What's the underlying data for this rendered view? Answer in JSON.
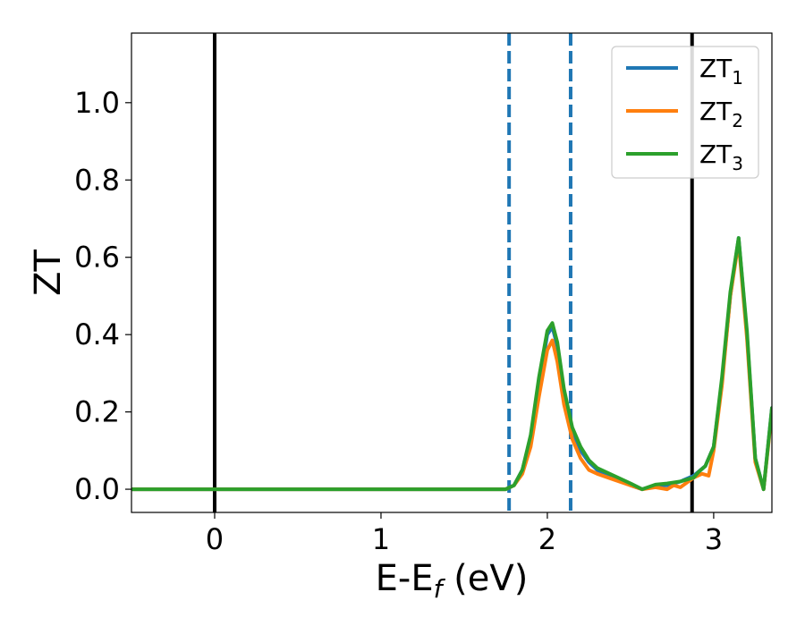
{
  "chart_data": {
    "type": "line",
    "xlabel_main": "E-E",
    "xlabel_sub": "f",
    "xlabel_unit": " (eV)",
    "ylabel": "ZT",
    "xlim": [
      -0.5,
      3.35
    ],
    "ylim": [
      -0.06,
      1.18
    ],
    "xticks": [
      0,
      1,
      2,
      3
    ],
    "xtick_labels": [
      "0",
      "1",
      "2",
      "3"
    ],
    "yticks": [
      0.0,
      0.2,
      0.4,
      0.6,
      0.8,
      1.0
    ],
    "ytick_labels": [
      "0.0",
      "0.2",
      "0.4",
      "0.6",
      "0.8",
      "1.0"
    ],
    "grid": false,
    "legend_position": "top-right",
    "vlines_solid": [
      0.0,
      2.87
    ],
    "vlines_dashed": [
      1.77,
      2.14
    ],
    "series": [
      {
        "name_main": "ZT",
        "name_sub": "1",
        "color": "#1f77b4",
        "x": [
          -0.5,
          1.75,
          1.8,
          1.85,
          1.9,
          1.95,
          2.0,
          2.03,
          2.06,
          2.1,
          2.15,
          2.2,
          2.25,
          2.3,
          2.4,
          2.5,
          2.57,
          2.65,
          2.72,
          2.8,
          2.88,
          2.95,
          3.0,
          3.05,
          3.1,
          3.15,
          3.2,
          3.25,
          3.3,
          3.35
        ],
        "y": [
          0.0,
          0.0,
          0.01,
          0.05,
          0.13,
          0.27,
          0.4,
          0.42,
          0.37,
          0.25,
          0.15,
          0.1,
          0.07,
          0.05,
          0.03,
          0.01,
          0.0,
          0.01,
          0.01,
          0.02,
          0.035,
          0.06,
          0.11,
          0.28,
          0.5,
          0.65,
          0.4,
          0.08,
          0.0,
          0.21
        ]
      },
      {
        "name_main": "ZT",
        "name_sub": "2",
        "color": "#ff7f0e",
        "x": [
          -0.5,
          1.75,
          1.8,
          1.85,
          1.9,
          1.95,
          2.0,
          2.03,
          2.06,
          2.1,
          2.15,
          2.2,
          2.25,
          2.3,
          2.4,
          2.5,
          2.57,
          2.65,
          2.72,
          2.76,
          2.8,
          2.88,
          2.93,
          2.97,
          3.0,
          3.05,
          3.1,
          3.15,
          3.2,
          3.25,
          3.3,
          3.35
        ],
        "y": [
          0.0,
          0.0,
          0.01,
          0.04,
          0.11,
          0.24,
          0.36,
          0.385,
          0.33,
          0.22,
          0.13,
          0.08,
          0.05,
          0.04,
          0.025,
          0.01,
          0.0,
          0.005,
          0.0,
          0.01,
          0.005,
          0.03,
          0.04,
          0.035,
          0.1,
          0.27,
          0.5,
          0.64,
          0.39,
          0.07,
          0.0,
          0.2
        ]
      },
      {
        "name_main": "ZT",
        "name_sub": "3",
        "color": "#2ca02c",
        "x": [
          -0.5,
          1.75,
          1.8,
          1.85,
          1.9,
          1.95,
          2.0,
          2.03,
          2.06,
          2.1,
          2.15,
          2.2,
          2.25,
          2.3,
          2.4,
          2.5,
          2.57,
          2.65,
          2.72,
          2.8,
          2.88,
          2.91,
          2.95,
          3.0,
          3.05,
          3.1,
          3.15,
          3.2,
          3.25,
          3.3,
          3.35
        ],
        "y": [
          0.0,
          0.0,
          0.01,
          0.05,
          0.14,
          0.29,
          0.41,
          0.43,
          0.38,
          0.26,
          0.16,
          0.11,
          0.075,
          0.055,
          0.035,
          0.015,
          0.0,
          0.012,
          0.015,
          0.02,
          0.03,
          0.045,
          0.06,
          0.11,
          0.29,
          0.51,
          0.65,
          0.41,
          0.08,
          0.0,
          0.21
        ]
      }
    ]
  }
}
